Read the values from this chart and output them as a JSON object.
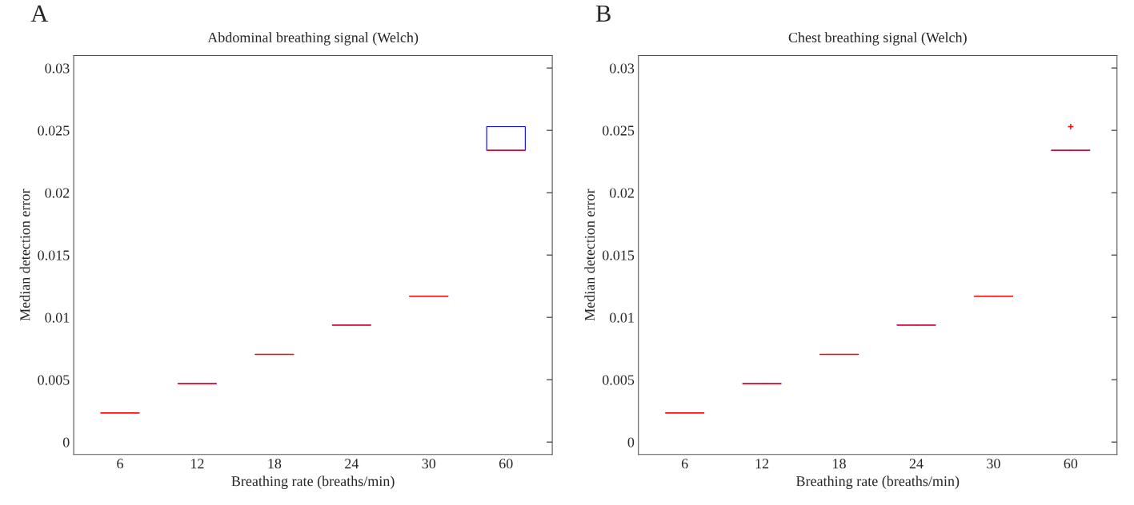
{
  "chart_data": [
    {
      "type": "box",
      "title": "Abdominal breathing signal (Welch)",
      "xlabel": "Breathing rate (breaths/min)",
      "ylabel": "Median detection error",
      "annotations": [
        "A"
      ],
      "categories": [
        "6",
        "12",
        "18",
        "24",
        "30",
        "60"
      ],
      "ylim": [
        -0.001,
        0.031
      ],
      "yticks": [
        0,
        0.005,
        0.01,
        0.015,
        0.02,
        0.025,
        0.03
      ],
      "grid": false,
      "series": [
        {
          "color": "#0000ff",
          "boxes": [
            {
              "low": 0.00234,
              "q1": 0.00234,
              "median": 0.00234,
              "q3": 0.00234,
              "high": 0.00234
            },
            {
              "low": 0.00469,
              "q1": 0.00469,
              "median": 0.00469,
              "q3": 0.00469,
              "high": 0.00469
            },
            {
              "low": 0.00703,
              "q1": 0.00703,
              "median": 0.00703,
              "q3": 0.00703,
              "high": 0.00703
            },
            {
              "low": 0.00938,
              "q1": 0.00938,
              "median": 0.00938,
              "q3": 0.00938,
              "high": 0.00938
            },
            {
              "low": 0.0117,
              "q1": 0.0117,
              "median": 0.0117,
              "q3": 0.0117,
              "high": 0.0117
            },
            {
              "low": 0.0234,
              "q1": 0.0234,
              "median": 0.0234,
              "q3": 0.0253,
              "high": 0.0253
            }
          ]
        }
      ]
    },
    {
      "type": "box",
      "title": "Chest breathing signal (Welch)",
      "xlabel": "Breathing rate (breaths/min)",
      "ylabel": "Median detection error",
      "annotations": [
        "B"
      ],
      "categories": [
        "6",
        "12",
        "18",
        "24",
        "30",
        "60"
      ],
      "ylim": [
        -0.001,
        0.031
      ],
      "yticks": [
        0,
        0.005,
        0.01,
        0.015,
        0.02,
        0.025,
        0.03
      ],
      "grid": false,
      "series": [
        {
          "color": "#0000ff",
          "boxes": [
            {
              "low": 0.00234,
              "q1": 0.00234,
              "median": 0.00234,
              "q3": 0.00234,
              "high": 0.00234
            },
            {
              "low": 0.00469,
              "q1": 0.00469,
              "median": 0.00469,
              "q3": 0.00469,
              "high": 0.00469
            },
            {
              "low": 0.00703,
              "q1": 0.00703,
              "median": 0.00703,
              "q3": 0.00703,
              "high": 0.00703
            },
            {
              "low": 0.00938,
              "q1": 0.00938,
              "median": 0.00938,
              "q3": 0.00938,
              "high": 0.00938
            },
            {
              "low": 0.0117,
              "q1": 0.0117,
              "median": 0.0117,
              "q3": 0.0117,
              "high": 0.0117
            },
            {
              "low": 0.0234,
              "q1": 0.0234,
              "median": 0.0234,
              "q3": 0.0234,
              "high": 0.0234,
              "outliers": [
                0.0253
              ]
            }
          ]
        }
      ]
    }
  ]
}
